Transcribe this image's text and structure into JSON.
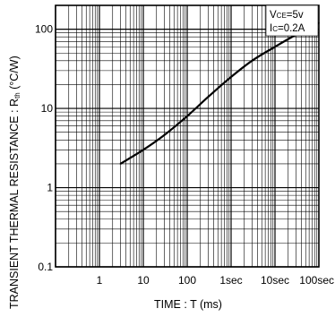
{
  "chart_data": {
    "type": "line",
    "xscale": "log",
    "yscale": "log",
    "xlim": [
      0.1,
      100000
    ],
    "ylim": [
      0.1,
      200
    ],
    "x_ticks": [
      {
        "value": 1,
        "label": "1"
      },
      {
        "value": 10,
        "label": "10"
      },
      {
        "value": 100,
        "label": "100"
      },
      {
        "value": 1000,
        "label": "1sec"
      },
      {
        "value": 10000,
        "label": "10sec"
      },
      {
        "value": 100000,
        "label": "100sec"
      }
    ],
    "y_ticks": [
      {
        "value": 0.1,
        "label": "0.1"
      },
      {
        "value": 1,
        "label": "1"
      },
      {
        "value": 10,
        "label": "10"
      },
      {
        "value": 100,
        "label": "100"
      }
    ],
    "xlabel": "TIME : T (ms)",
    "ylabel": "TRANSIENT THERMAL RESISTANCE : Rth (°C/W)",
    "grid": true,
    "annotation": {
      "line1": "VCE=5v",
      "line2": "IC=0.2A"
    },
    "series": [
      {
        "color": "#000000",
        "points": [
          [
            3,
            2.0
          ],
          [
            10,
            3.0
          ],
          [
            30,
            4.6
          ],
          [
            100,
            8.0
          ],
          [
            300,
            14.0
          ],
          [
            1000,
            25.0
          ],
          [
            3000,
            40.0
          ],
          [
            10000,
            60.0
          ],
          [
            30000,
            85.0
          ],
          [
            100000,
            120.0
          ]
        ]
      }
    ]
  }
}
